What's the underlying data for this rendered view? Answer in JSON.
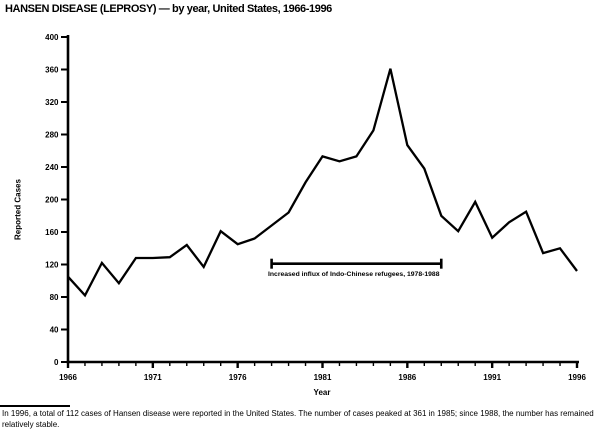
{
  "title": "HANSEN DISEASE (LEPROSY) — by year, United States, 1966-1996",
  "chart_data": {
    "type": "line",
    "title": "HANSEN DISEASE (LEPROSY) — by year, United States, 1966-1996",
    "xlabel": "Year",
    "ylabel": "Reported Cases",
    "x": [
      1966,
      1967,
      1968,
      1969,
      1970,
      1971,
      1972,
      1973,
      1974,
      1975,
      1976,
      1977,
      1978,
      1979,
      1980,
      1981,
      1982,
      1983,
      1984,
      1985,
      1986,
      1987,
      1988,
      1989,
      1990,
      1991,
      1992,
      1993,
      1994,
      1995,
      1996
    ],
    "series": [
      {
        "name": "Reported cases",
        "values": [
          105,
          82,
          122,
          97,
          128,
          128,
          129,
          144,
          117,
          161,
          145,
          152,
          168,
          184,
          221,
          253,
          247,
          253,
          285,
          361,
          267,
          238,
          180,
          161,
          197,
          153,
          172,
          185,
          134,
          140,
          112
        ]
      }
    ],
    "ylim": [
      0,
      400
    ],
    "y_ticks": [
      0,
      40,
      80,
      120,
      160,
      200,
      240,
      280,
      320,
      360,
      400
    ],
    "x_tick_labels": [
      "1966",
      "1971",
      "1976",
      "1981",
      "1986",
      "1991",
      "1996"
    ],
    "grid": false,
    "legend_position": "none",
    "line_color": "#000000",
    "annotation": {
      "label": "Increased influx of Indo-Chinese refugees, 1978-1988",
      "from_year": 1978,
      "to_year": 1988,
      "at_value": 121
    }
  },
  "footnote": "In 1996, a total of 112 cases of Hansen disease were reported in the United States. The number of cases peaked at 361 in 1985; since 1988, the number has remained relatively stable."
}
